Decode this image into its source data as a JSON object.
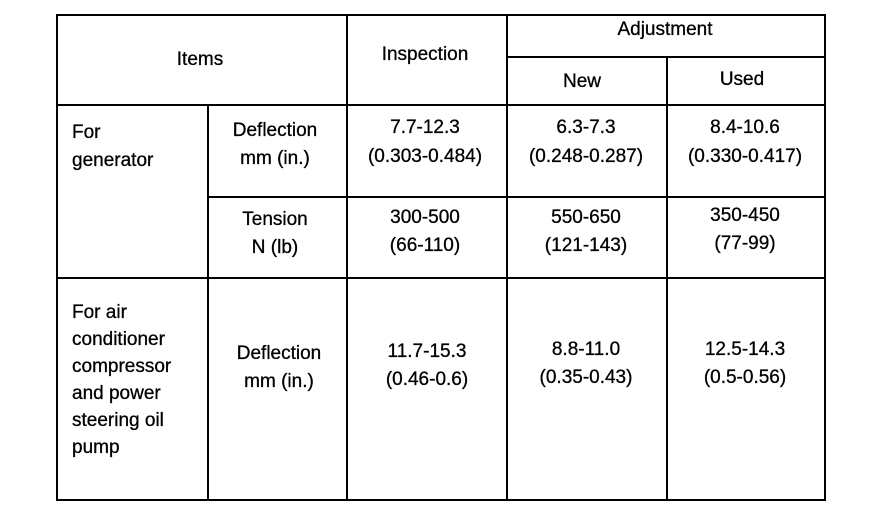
{
  "table": {
    "header": {
      "items": "Items",
      "inspection": "Inspection",
      "adjustment": "Adjustment",
      "new": "New",
      "used": "Used"
    },
    "rows": [
      {
        "group": [
          "For",
          "generator"
        ],
        "parameter": [
          "Deflection",
          "mm (in.)"
        ],
        "inspection": [
          "7.7-12.3",
          "(0.303-0.484)"
        ],
        "new": [
          "6.3-7.3",
          "(0.248-0.287)"
        ],
        "used": [
          "8.4-10.6",
          "(0.330-0.417)"
        ]
      },
      {
        "parameter": [
          "Tension",
          "N (lb)"
        ],
        "inspection": [
          "300-500",
          "(66-110)"
        ],
        "new": [
          "550-650",
          "(121-143)"
        ],
        "used": [
          "350-450",
          "(77-99)"
        ]
      },
      {
        "group": [
          "For air",
          "conditioner",
          "compressor",
          "and power",
          "steering oil",
          "pump"
        ],
        "parameter": [
          "Deflection",
          "mm (in.)"
        ],
        "inspection": [
          "11.7-15.3",
          "(0.46-0.6)"
        ],
        "new": [
          "8.8-11.0",
          "(0.35-0.43)"
        ],
        "used": [
          "12.5-14.3",
          "(0.5-0.56)"
        ]
      }
    ]
  }
}
